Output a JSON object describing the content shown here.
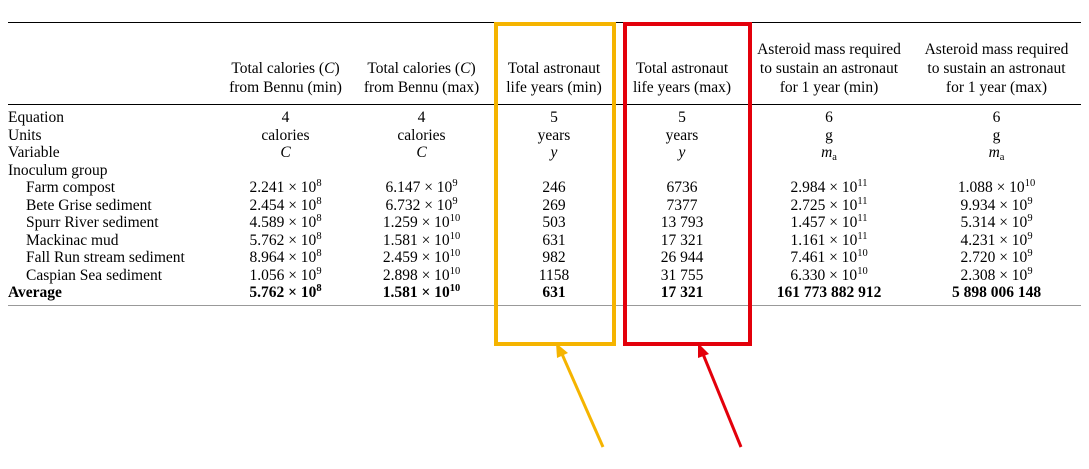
{
  "table": {
    "headers": [
      "",
      "Total calories (C)\nfrom Bennu (min)",
      "Total calories (C)\nfrom Bennu (max)",
      "Total astronaut\nlife years (min)",
      "Total astronaut\nlife years (max)",
      "Asteroid mass required\nto sustain an astronaut\nfor 1 year (min)",
      "Asteroid mass required\nto sustain an astronaut\nfor 1 year (max)"
    ],
    "equation_row": [
      "Equation",
      "4",
      "4",
      "5",
      "5",
      "6",
      "6"
    ],
    "units_row": [
      "Units",
      "calories",
      "calories",
      "years",
      "years",
      "g",
      "g"
    ],
    "variable_row": [
      "Variable",
      "C",
      "C",
      "y",
      "y",
      "m",
      "m"
    ],
    "variable_subscript": "a",
    "group_label": "Inoculum group",
    "rows": [
      {
        "name": "Farm compost",
        "cal_min": "2.241 × 10",
        "cal_min_exp": "8",
        "cal_max": "6.147 × 10",
        "cal_max_exp": "9",
        "years_min": "246",
        "years_max": "6736",
        "mass_min": "2.984 × 10",
        "mass_min_exp": "11",
        "mass_max": "1.088 × 10",
        "mass_max_exp": "10"
      },
      {
        "name": "Bete Grise sediment",
        "cal_min": "2.454 × 10",
        "cal_min_exp": "8",
        "cal_max": "6.732 × 10",
        "cal_max_exp": "9",
        "years_min": "269",
        "years_max": "7377",
        "mass_min": "2.725 × 10",
        "mass_min_exp": "11",
        "mass_max": "9.934 × 10",
        "mass_max_exp": "9"
      },
      {
        "name": "Spurr River sediment",
        "cal_min": "4.589 × 10",
        "cal_min_exp": "8",
        "cal_max": "1.259 × 10",
        "cal_max_exp": "10",
        "years_min": "503",
        "years_max": "13 793",
        "mass_min": "1.457 × 10",
        "mass_min_exp": "11",
        "mass_max": "5.314 × 10",
        "mass_max_exp": "9"
      },
      {
        "name": "Mackinac mud",
        "cal_min": "5.762 × 10",
        "cal_min_exp": "8",
        "cal_max": "1.581 × 10",
        "cal_max_exp": "10",
        "years_min": "631",
        "years_max": "17 321",
        "mass_min": "1.161 × 10",
        "mass_min_exp": "11",
        "mass_max": "4.231 × 10",
        "mass_max_exp": "9"
      },
      {
        "name": "Fall Run stream sediment",
        "cal_min": "8.964 × 10",
        "cal_min_exp": "8",
        "cal_max": "2.459 × 10",
        "cal_max_exp": "10",
        "years_min": "982",
        "years_max": "26 944",
        "mass_min": "7.461 × 10",
        "mass_min_exp": "10",
        "mass_max": "2.720 × 10",
        "mass_max_exp": "9"
      },
      {
        "name": "Caspian Sea sediment",
        "cal_min": "1.056 × 10",
        "cal_min_exp": "9",
        "cal_max": "2.898 × 10",
        "cal_max_exp": "10",
        "years_min": "1158",
        "years_max": "31 755",
        "mass_min": "6.330 × 10",
        "mass_min_exp": "10",
        "mass_max": "2.308 × 10",
        "mass_max_exp": "9"
      }
    ],
    "average": {
      "name": "Average",
      "cal_min": "5.762 × 10",
      "cal_min_exp": "8",
      "cal_max": "1.581 × 10",
      "cal_max_exp": "10",
      "years_min": "631",
      "years_max": "17 321",
      "mass_min": "161 773 882 912",
      "mass_max": "5 898 006 148"
    }
  },
  "highlights": {
    "yellow_color": "#f5b400",
    "red_color": "#e3000b"
  }
}
